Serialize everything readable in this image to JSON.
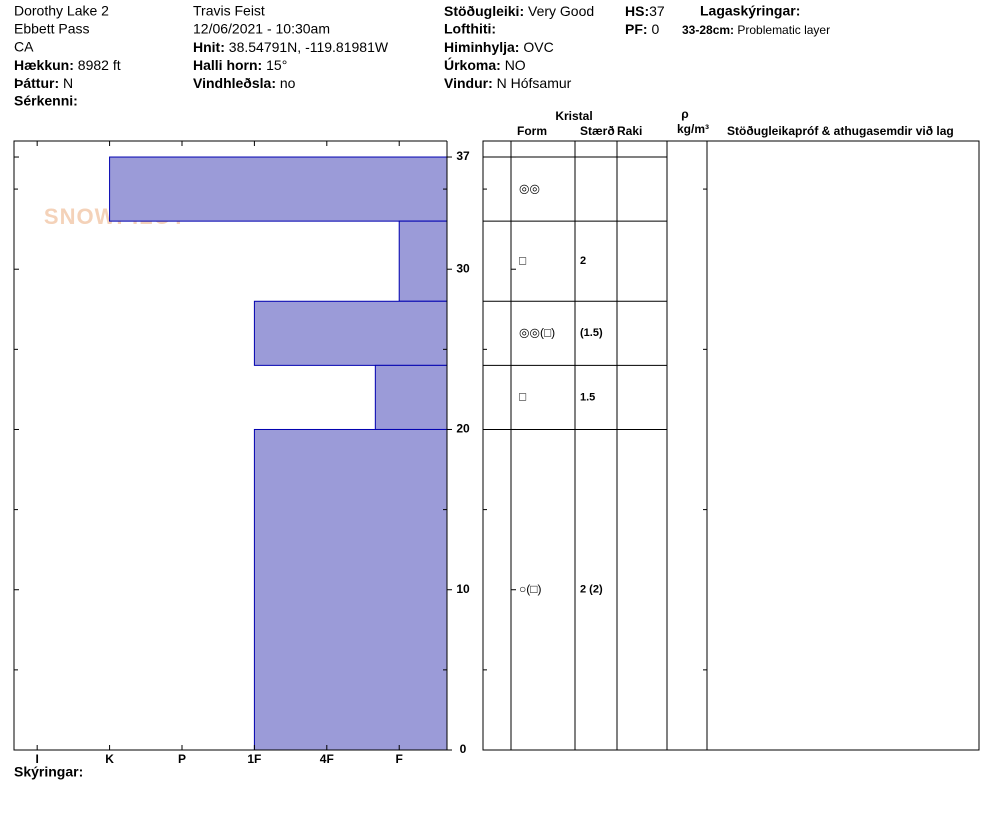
{
  "header": {
    "site": "Dorothy Lake 2",
    "area": "Ebbett Pass",
    "state": "CA",
    "elevation": {
      "label": "Hækkun:",
      "value": "8982 ft"
    },
    "aspect": {
      "label": "Þáttur:",
      "value": "N"
    },
    "features": {
      "label": "Sérkenni:"
    },
    "observer": "Travis Feist",
    "datetime": "12/06/2021 - 10:30am",
    "coords": {
      "label": "Hnit:",
      "value": "38.54791N, -119.81981W"
    },
    "slope": {
      "label": "Halli horn:",
      "value": "15°"
    },
    "wind_loading": {
      "label": "Vindhleðsla:",
      "value": "no"
    },
    "stability": {
      "label": "Stöðugleiki:",
      "value": "Very Good"
    },
    "air_temp": {
      "label": "Lofthiti:"
    },
    "sky": {
      "label": "Himinhylja:",
      "value": "OVC"
    },
    "precip": {
      "label": "Úrkoma:",
      "value": "NO"
    },
    "wind": {
      "label": "Vindur:",
      "value": "N Hófsamur"
    },
    "hs": {
      "label": "HS:",
      "value": "37"
    },
    "pf": {
      "label": "PF:",
      "value": "0"
    },
    "layer_notes": {
      "title": "Lagaskýringar:",
      "items": [
        {
          "depth": "33-28cm:",
          "text": "Problematic layer"
        }
      ]
    }
  },
  "chart_data": {
    "type": "snow-profile",
    "watermark": "SNOWPILOT",
    "color": "#9b9bd8",
    "ylim": [
      0,
      38
    ],
    "yticks": [
      0,
      10,
      20,
      30,
      37
    ],
    "minor_yticks": [
      5,
      15,
      25,
      35
    ],
    "xlim": [
      6.32,
      0.34
    ],
    "xticks": [
      {
        "value": 6,
        "label": "I"
      },
      {
        "value": 5,
        "label": "K"
      },
      {
        "value": 4,
        "label": "P"
      },
      {
        "value": 3,
        "label": "1F"
      },
      {
        "value": 2,
        "label": "4F"
      },
      {
        "value": 1,
        "label": "F"
      }
    ],
    "layers": [
      {
        "top": 37,
        "bottom": 33,
        "hardness": 5,
        "form": "◎◎"
      },
      {
        "top": 33,
        "bottom": 28,
        "hardness": 1,
        "form": "□",
        "size": "2"
      },
      {
        "top": 28,
        "bottom": 24,
        "hardness": 3,
        "form": "◎◎(□)",
        "size": "(1.5)"
      },
      {
        "top": 24,
        "bottom": 20,
        "hardness": 1.33,
        "form": "□",
        "size": "1.5"
      },
      {
        "top": 20,
        "bottom": 0,
        "hardness": 3,
        "form": "○(□)",
        "size": "2 (2)"
      }
    ]
  },
  "table_header": {
    "crystal": "Kristal",
    "form": "Form",
    "size": "Stærð",
    "moisture": "Raki",
    "rho": "ρ",
    "density_unit": "kg/m³",
    "tests": "Stöðugleikapróf & athugasemdir við lag"
  },
  "footer": "Skýringar:"
}
